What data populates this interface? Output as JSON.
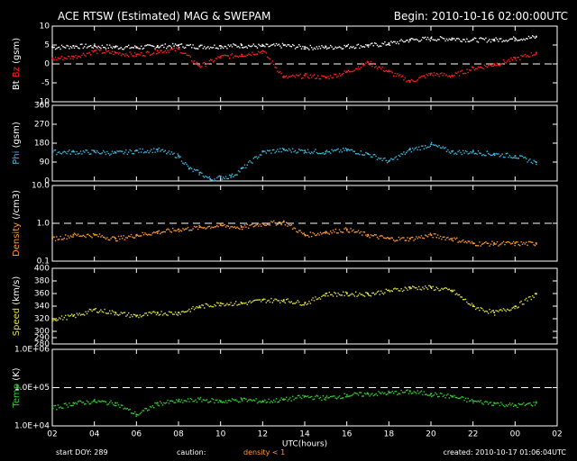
{
  "header": {
    "title": "ACE RTSW (Estimated) MAG & SWEPAM",
    "begin": "Begin: 2010-10-16 02:00:00UTC"
  },
  "footer": {
    "start_doy": "start DOY: 289",
    "caution": "caution:",
    "caution_note": "density < 1",
    "created": "created: 2010-10-17 01:06:04UTC"
  },
  "colors": {
    "background": "#000000",
    "axes": "#ffffff",
    "bt": "#ffffff",
    "bz": "#ff2020",
    "phi": "#40b8e0",
    "density": "#ff9a30",
    "speed": "#e0e040",
    "temp": "#30d030"
  },
  "chart_data": {
    "type": "scatter",
    "xlabel": "UTC(hours)",
    "x_unit": "hours since 2010-10-16 02:00 UTC",
    "xlim": [
      0,
      24
    ],
    "x_tick_labels": [
      "02",
      "04",
      "06",
      "08",
      "10",
      "12",
      "14",
      "16",
      "18",
      "20",
      "22",
      "00",
      "02"
    ],
    "panels": [
      {
        "id": "mag",
        "ylabel_parts": [
          "Bt",
          "Bz",
          "(gsm)"
        ],
        "ylim": [
          -10,
          10
        ],
        "yticks": [
          -10,
          -5,
          0,
          5,
          10
        ],
        "tick_labels": [
          "-10",
          "-5",
          "0",
          "5",
          "10"
        ],
        "dashed": [
          0
        ],
        "series": [
          {
            "name": "Bt",
            "color_key": "bt",
            "x": [
              0,
              1,
              2,
              3,
              4,
              5,
              6,
              7,
              8,
              9,
              10,
              11,
              12,
              13,
              14,
              15,
              16,
              17,
              18,
              19,
              20,
              21,
              22,
              23
            ],
            "y": [
              4.5,
              4.8,
              4.8,
              4.6,
              4.5,
              4.8,
              5.0,
              4.7,
              4.8,
              5.0,
              4.8,
              5.0,
              4.5,
              4.5,
              4.8,
              5.0,
              5.5,
              6.5,
              6.8,
              6.8,
              6.5,
              6.5,
              6.8,
              7.2
            ]
          },
          {
            "name": "Bz",
            "color_key": "bz",
            "x": [
              0,
              1,
              2,
              3,
              4,
              5,
              6,
              7,
              8,
              9,
              10,
              11,
              12,
              13,
              14,
              15,
              16,
              17,
              18,
              19,
              20,
              21,
              22,
              23
            ],
            "y": [
              1.5,
              2.0,
              3.5,
              3.0,
              2.5,
              3.5,
              4.0,
              -0.5,
              2.0,
              2.5,
              3.5,
              -3.5,
              -3.0,
              -3.5,
              -2.0,
              0.5,
              -2.0,
              -4.5,
              -2.5,
              -3.0,
              -1.0,
              0.0,
              1.5,
              3.0
            ]
          }
        ]
      },
      {
        "id": "phi",
        "ylabel_parts": [
          "Phi",
          "(gsm)"
        ],
        "ylim": [
          0,
          360
        ],
        "yticks": [
          0,
          90,
          180,
          270,
          360
        ],
        "tick_labels": [
          "0",
          "90",
          "180",
          "270",
          "360"
        ],
        "dashed": [],
        "series": [
          {
            "name": "Phi",
            "color_key": "phi",
            "x": [
              0,
              1,
              2,
              3,
              4,
              5,
              6,
              6.5,
              7,
              7.5,
              8,
              8.5,
              9,
              10,
              11,
              12,
              13,
              14,
              15,
              16,
              17,
              18,
              19,
              20,
              21,
              22,
              23
            ],
            "y": [
              140,
              140,
              140,
              135,
              145,
              150,
              120,
              60,
              40,
              10,
              20,
              25,
              60,
              140,
              150,
              145,
              140,
              150,
              130,
              95,
              150,
              175,
              140,
              140,
              130,
              120,
              90
            ]
          }
        ]
      },
      {
        "id": "density",
        "ylabel_parts": [
          "Density",
          "(/cm3)"
        ],
        "yscale": "log",
        "ylim": [
          0.1,
          10
        ],
        "yticks": [
          0.1,
          1,
          10
        ],
        "tick_labels": [
          "0.1",
          "1.0",
          "10.0"
        ],
        "dashed": [
          1
        ],
        "series": [
          {
            "name": "Density",
            "color_key": "density",
            "x": [
              0,
              1,
              2,
              3,
              4,
              5,
              6,
              7,
              8,
              9,
              10,
              11,
              12,
              13,
              14,
              15,
              16,
              17,
              18,
              19,
              20,
              21,
              22,
              23
            ],
            "y": [
              0.4,
              0.5,
              0.5,
              0.4,
              0.5,
              0.6,
              0.7,
              0.8,
              0.9,
              0.8,
              1.0,
              1.1,
              0.5,
              0.6,
              0.7,
              0.5,
              0.4,
              0.4,
              0.5,
              0.4,
              0.3,
              0.3,
              0.3,
              0.3
            ]
          }
        ]
      },
      {
        "id": "speed",
        "ylabel_parts": [
          "Speed",
          "(km/s)"
        ],
        "ylim": [
          280,
          400
        ],
        "yticks": [
          280,
          290,
          300,
          320,
          340,
          360,
          380,
          400
        ],
        "tick_labels": [
          "280",
          "290",
          "300",
          "320",
          "340",
          "360",
          "380",
          "400"
        ],
        "dashed": [],
        "series": [
          {
            "name": "Speed",
            "color_key": "speed",
            "x": [
              0,
              1,
              2,
              3,
              4,
              5,
              6,
              7,
              8,
              9,
              10,
              11,
              12,
              13,
              14,
              15,
              16,
              17,
              18,
              19,
              20,
              21,
              22,
              23
            ],
            "y": [
              320,
              325,
              335,
              330,
              325,
              330,
              330,
              340,
              345,
              345,
              350,
              350,
              345,
              360,
              360,
              360,
              365,
              370,
              370,
              365,
              340,
              330,
              340,
              360
            ]
          }
        ]
      },
      {
        "id": "temp",
        "ylabel_parts": [
          "Temp",
          "(K)"
        ],
        "yscale": "log",
        "ylim": [
          10000,
          1000000
        ],
        "yticks": [
          10000,
          100000,
          1000000
        ],
        "tick_labels": [
          "1.0E+04",
          "1.0E+05",
          "1.0E+06"
        ],
        "dashed": [
          100000
        ],
        "series": [
          {
            "name": "Temp",
            "color_key": "temp",
            "x": [
              0,
              1,
              2,
              3,
              4,
              5,
              6,
              7,
              8,
              9,
              10,
              11,
              12,
              13,
              14,
              15,
              16,
              17,
              18,
              19,
              20,
              21,
              22,
              23
            ],
            "y": [
              30000,
              40000,
              45000,
              40000,
              20000,
              40000,
              45000,
              50000,
              45000,
              50000,
              45000,
              50000,
              60000,
              55000,
              65000,
              70000,
              75000,
              80000,
              70000,
              60000,
              45000,
              40000,
              35000,
              40000
            ]
          }
        ]
      }
    ]
  }
}
